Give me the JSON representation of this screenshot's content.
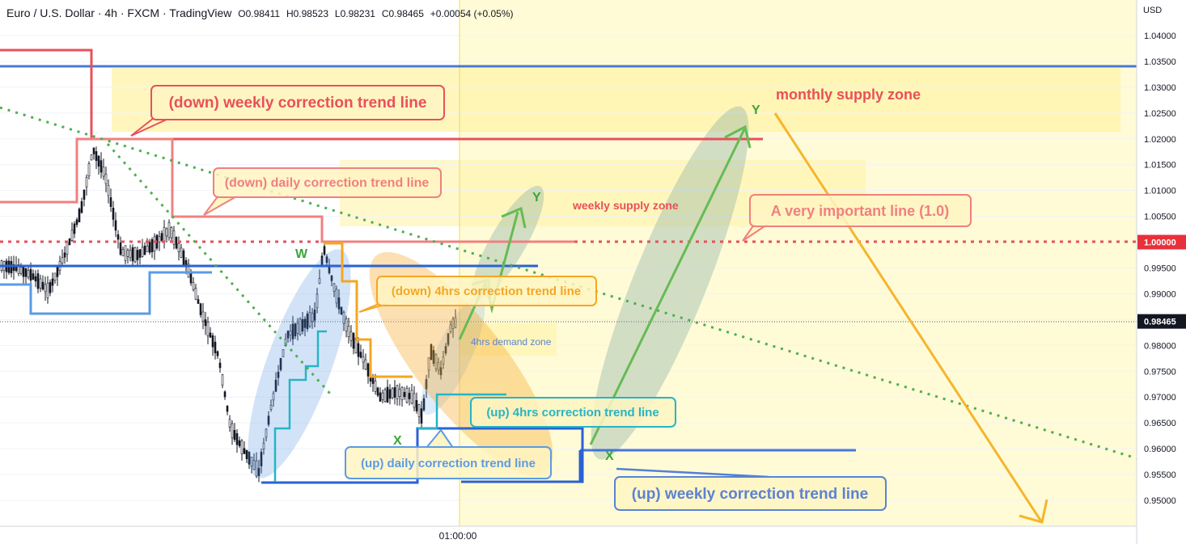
{
  "header": {
    "symbol": "Euro / U.S. Dollar",
    "interval": "4h",
    "exchange": "FXCM",
    "platform": "TradingView",
    "open": "O0.98411",
    "high": "H0.98523",
    "low": "L0.98231",
    "close": "C0.98465",
    "change": "+0.00054 (+0.05%)"
  },
  "chart_data": {
    "type": "candlestick",
    "price_axis": {
      "currency": "USD",
      "ticks": [
        "1.04000",
        "1.03500",
        "1.03000",
        "1.02500",
        "1.02000",
        "1.01500",
        "1.01000",
        "1.00500",
        "1.00000",
        "0.99500",
        "0.99000",
        "0.98500",
        "0.98465",
        "0.98000",
        "0.97500",
        "0.97000",
        "0.96500",
        "0.96000",
        "0.95500",
        "0.95000"
      ],
      "range": [
        0.9465,
        1.043
      ]
    },
    "time_axis": {
      "ticks": [
        "01:00:00"
      ]
    },
    "last_price": "0.98465",
    "highlighted_level": "1.00000",
    "annotations": {
      "weekly_down": "(down) weekly correction trend line",
      "daily_down": "(down) daily correction trend line",
      "h4_down": "(down) 4hrs correction trend line",
      "h4_up": "(up) 4hrs correction trend line",
      "daily_up": "(up) daily correction trend line",
      "weekly_up": "(up) weekly correction trend line",
      "important": "A very important line (1.0)",
      "monthly_supply": "monthly supply zone",
      "weekly_supply": "weekly supply zone",
      "h4_demand": "4hrs demand zone",
      "w": "W",
      "x1": "X",
      "x2": "X",
      "y1": "Y",
      "y2": "Y"
    },
    "colors": {
      "red": "#e8505b",
      "pink": "#f08080",
      "blue": "#2962d4",
      "lightblue": "#5b9be6",
      "orange": "#f5a623",
      "teal": "#26b5c4",
      "green": "#4caf50",
      "yellow_zone": "#fff6b3"
    }
  }
}
